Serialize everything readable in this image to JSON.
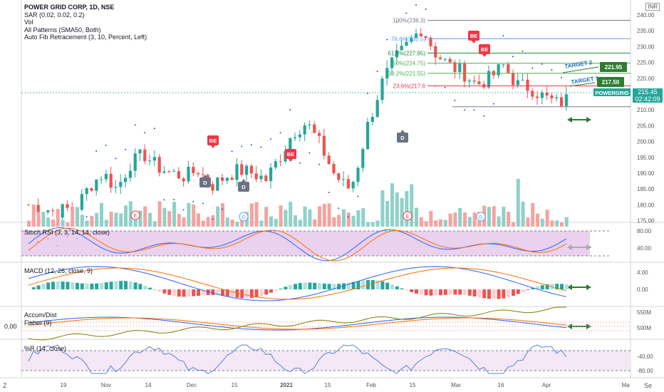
{
  "header": {
    "title": "POWER GRID CORP, 1D, NSE",
    "studies": [
      "SAR (0.02, 0.02, 0.2)",
      "Vol",
      "All Patterns (SMA50, Both)",
      "Auto Fib Retracement (3, 10, Percent, Left)"
    ]
  },
  "currency": "INR",
  "price_axis": [
    "240.00",
    "235.00",
    "230.00",
    "225.00",
    "220.00",
    "215.00",
    "210.00",
    "205.00",
    "200.00",
    "195.00",
    "190.00",
    "185.00",
    "180.00",
    "175.00"
  ],
  "current_price": {
    "value": "215.45",
    "countdown": "02:42:09",
    "symbol": "POWERGRID"
  },
  "targets": [
    {
      "label": "TARGET 2",
      "value": "221.95"
    },
    {
      "label": "TARGET 1",
      "value": "217.50"
    }
  ],
  "fib_levels": [
    {
      "label": "100%(238.3)",
      "color": "#787b86"
    },
    {
      "label": "78.6%(232.5)",
      "color": "#5b9cf6"
    },
    {
      "label": "61.8%(227.95)",
      "color": "#1e8f3f"
    },
    {
      "label": "50%(224.75)",
      "color": "#4caf50"
    },
    {
      "label": "38.2%(221.55)",
      "color": "#4caf50"
    },
    {
      "label": "23.6%(217.6",
      "color": "#f23645"
    }
  ],
  "patterns": {
    "bearish": "BE",
    "dividend": "D",
    "earnings": "E"
  },
  "panes": {
    "stoch": {
      "label": "Stoch RSI (3, 3, 14, 14, close)",
      "axis": [
        "80.00",
        "40.00"
      ]
    },
    "macd": {
      "label": "MACD (12, 26, close, 9)",
      "axis": [
        "4.00",
        "0.00"
      ]
    },
    "accum": {
      "label1": "Accum/Dist",
      "label2": "Fisher (9)",
      "left": "0.00",
      "axis": [
        "550M",
        "500M"
      ]
    },
    "wr": {
      "label": "%R (14, close)",
      "axis": [
        "-40.00",
        "-80.00"
      ]
    }
  },
  "time_axis": [
    "19",
    "Nov",
    "14",
    "Dec",
    "15",
    "2021",
    "15",
    "Feb",
    "15",
    "Mar",
    "16",
    "Apr",
    "Ma"
  ],
  "corner_left": "Z",
  "corner_right": "Se",
  "colors": {
    "up": "#26a69a",
    "down": "#ef5350",
    "stoch_band": "#e1bee7",
    "wr_band": "#f3e5f5",
    "arrow": "#2e7d32"
  }
}
